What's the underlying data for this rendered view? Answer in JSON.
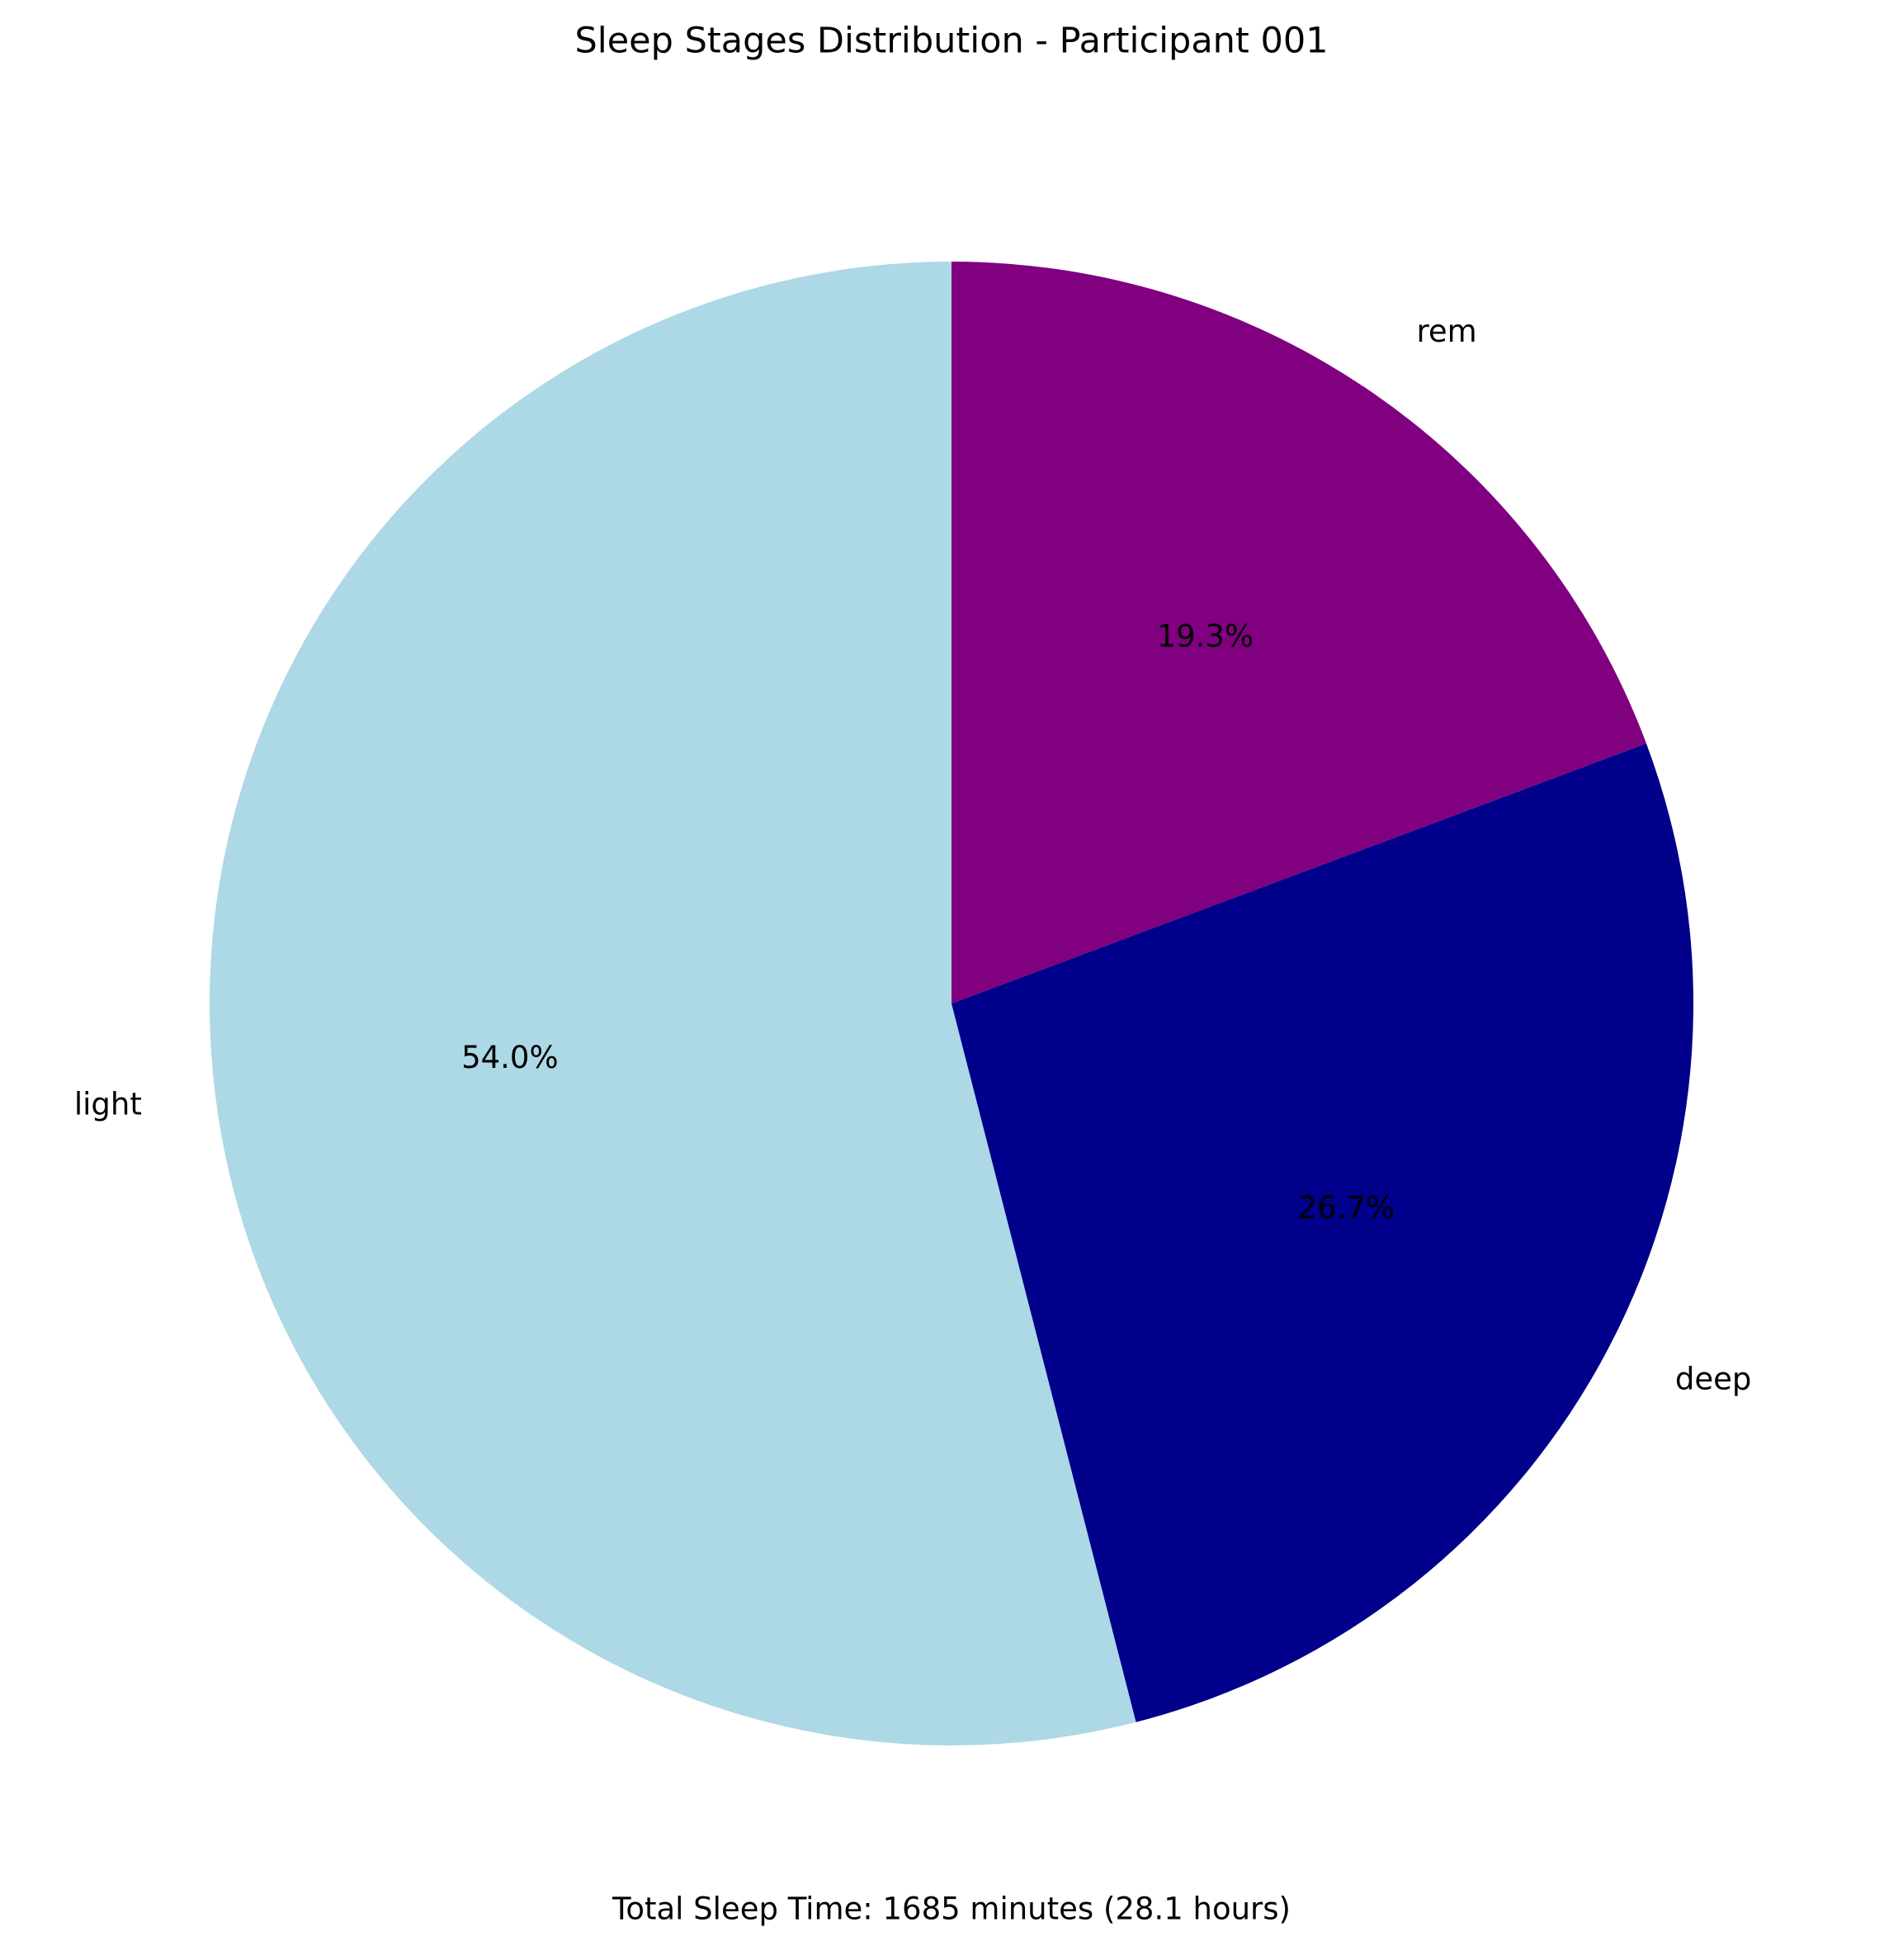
{
  "chart_data": {
    "type": "pie",
    "title": "Sleep Stages Distribution - Participant 001",
    "footer": "Total Sleep Time: 1685 minutes (28.1 hours)",
    "start_angle_deg": 90,
    "direction": "counterclockwise",
    "slices": [
      {
        "label": "light",
        "value": 54.0,
        "pct_label": "54.0%",
        "color": "#add8e6"
      },
      {
        "label": "deep",
        "value": 26.7,
        "pct_label": "26.7%",
        "color": "#00008b"
      },
      {
        "label": "rem",
        "value": 19.3,
        "pct_label": "19.3%",
        "color": "#800080"
      }
    ]
  }
}
